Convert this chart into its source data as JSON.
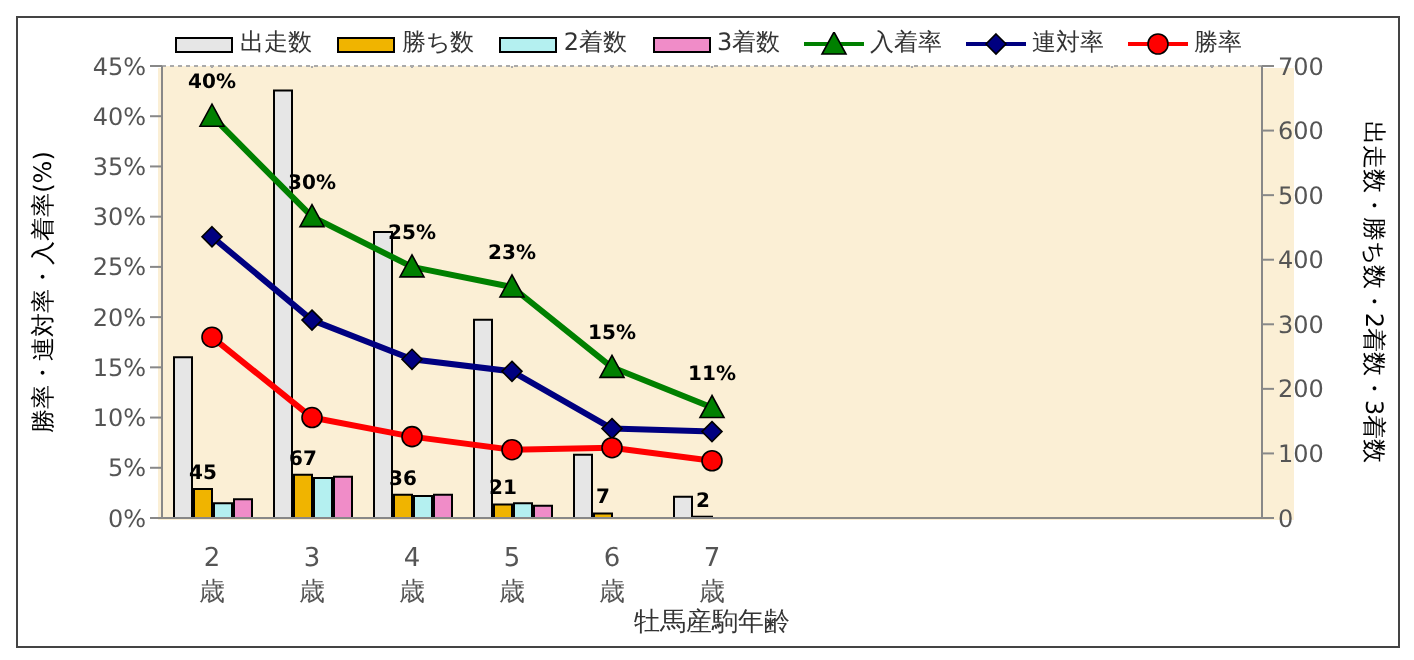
{
  "chart_data": {
    "type": "bar",
    "xlabel": "牡馬産駒年齢",
    "ylabel": "勝率・連対率・入着率(%)",
    "y2label": "出走数・勝ち数・2着数・3着数",
    "categories": [
      "2\n歳",
      "3\n歳",
      "4\n歳",
      "5\n歳",
      "6\n歳",
      "7\n歳",
      null,
      null,
      null,
      null,
      null
    ],
    "series": [
      {
        "name": "出走数",
        "axis": "y2",
        "color": "#e6e6e6",
        "values": [
          249,
          662,
          443,
          307,
          98,
          33,
          null,
          null,
          null,
          null,
          null
        ]
      },
      {
        "name": "勝ち数",
        "axis": "y2",
        "color": "#f0b400",
        "values": [
          45,
          67,
          36,
          21,
          7,
          2,
          null,
          null,
          null,
          null,
          null
        ],
        "value_labels": [
          "45",
          "67",
          "36",
          "21",
          "7",
          "2",
          null,
          null,
          null,
          null,
          null
        ]
      },
      {
        "name": "2着数",
        "axis": "y2",
        "color": "#b4f0f0",
        "values": [
          23,
          62,
          34,
          23,
          null,
          0,
          null,
          null,
          null,
          null,
          null
        ]
      },
      {
        "name": "3着数",
        "axis": "y2",
        "color": "#f08cc8",
        "values": [
          29,
          64,
          36,
          19,
          null,
          0,
          null,
          null,
          null,
          null,
          null
        ]
      },
      {
        "name": "入着率",
        "type": "line",
        "marker": "triangle",
        "color": "#008000",
        "values": [
          40,
          30,
          25,
          23,
          15,
          11,
          null,
          null,
          null,
          null,
          null
        ],
        "value_labels": [
          "40%",
          "30%",
          "25%",
          "23%",
          "15%",
          "11%",
          null,
          null,
          null,
          null,
          null
        ]
      },
      {
        "name": "連対率",
        "type": "line",
        "marker": "diamond",
        "color": "#000080",
        "values": [
          28,
          19.7,
          15.8,
          14.6,
          8.9,
          8.6,
          null,
          null,
          null,
          null,
          null
        ]
      },
      {
        "name": "勝率",
        "type": "line",
        "marker": "circle",
        "color": "#ff0000",
        "values": [
          18,
          10,
          8.1,
          6.8,
          7,
          5.7,
          null,
          null,
          null,
          null,
          null
        ]
      }
    ],
    "ylim": [
      0,
      45
    ],
    "yticks": [
      {
        "value": 0,
        "label": "0%"
      },
      {
        "value": 5,
        "label": "5%"
      },
      {
        "value": 10,
        "label": "10%"
      },
      {
        "value": 15,
        "label": "15%"
      },
      {
        "value": 20,
        "label": "20%"
      },
      {
        "value": 25,
        "label": "25%"
      },
      {
        "value": 30,
        "label": "30%"
      },
      {
        "value": 35,
        "label": "35%"
      },
      {
        "value": 40,
        "label": "40%"
      },
      {
        "value": 45,
        "label": "45%"
      }
    ],
    "y2lim": [
      0,
      700
    ],
    "y2ticks": [
      0,
      100,
      200,
      300,
      400,
      500,
      600,
      700
    ],
    "grid": true,
    "legend": "top"
  }
}
